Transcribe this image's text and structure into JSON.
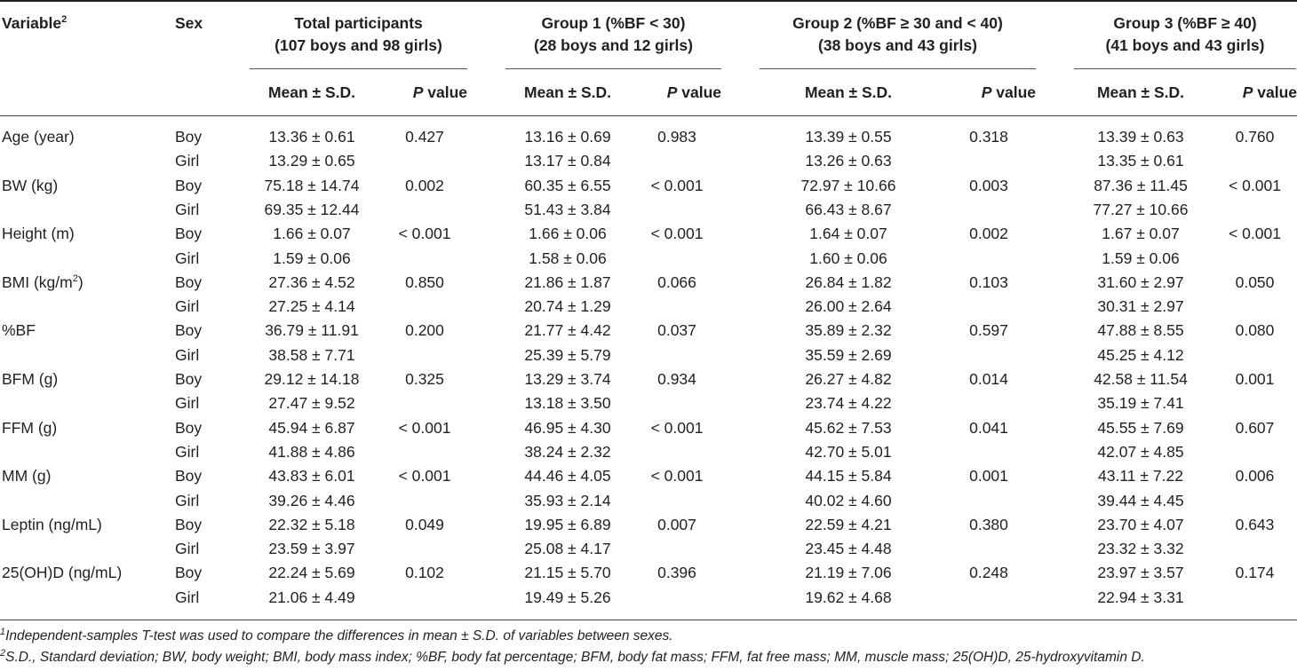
{
  "header": {
    "variable": "Variable",
    "variable_sup": "2",
    "sex": "Sex",
    "groups": [
      {
        "line1": "Total participants",
        "line2": "(107 boys and 98 girls)"
      },
      {
        "line1": "Group 1 (%BF < 30)",
        "line2": "(28 boys and 12 girls)"
      },
      {
        "line1": "Group 2 (%BF ≥ 30 and < 40)",
        "line2": "(38 boys and 43 girls)"
      },
      {
        "line1": "Group 3 (%BF ≥ 40)",
        "line2": "(41 boys and 43 girls)"
      }
    ],
    "mean_label": "Mean ± S.D.",
    "p_label_italic": "P",
    "p_label_rest": " value"
  },
  "rows": [
    {
      "variable": "Age (year)",
      "sup": "",
      "sex_boy": "Boy",
      "sex_girl": "Girl",
      "vals": [
        [
          "13.36 ± 0.61",
          "13.29 ± 0.65",
          "0.427"
        ],
        [
          "13.16 ± 0.69",
          "13.17 ± 0.84",
          "0.983"
        ],
        [
          "13.39 ± 0.55",
          "13.26 ± 0.63",
          "0.318"
        ],
        [
          "13.39 ± 0.63",
          "13.35 ± 0.61",
          "0.760"
        ]
      ]
    },
    {
      "variable": "BW (kg)",
      "sup": "",
      "sex_boy": "Boy",
      "sex_girl": "Girl",
      "vals": [
        [
          "75.18 ± 14.74",
          "69.35 ± 12.44",
          "0.002"
        ],
        [
          "60.35 ± 6.55",
          "51.43 ± 3.84",
          "< 0.001"
        ],
        [
          "72.97 ± 10.66",
          "66.43 ± 8.67",
          "0.003"
        ],
        [
          "87.36 ± 11.45",
          "77.27 ± 10.66",
          "< 0.001"
        ]
      ]
    },
    {
      "variable": "Height (m)",
      "sup": "",
      "sex_boy": "Boy",
      "sex_girl": "Girl",
      "vals": [
        [
          "1.66 ± 0.07",
          "1.59 ± 0.06",
          "< 0.001"
        ],
        [
          "1.66 ± 0.06",
          "1.58 ± 0.06",
          "< 0.001"
        ],
        [
          "1.64 ± 0.07",
          "1.60 ± 0.06",
          "0.002"
        ],
        [
          "1.67 ± 0.07",
          "1.59 ± 0.06",
          "< 0.001"
        ]
      ]
    },
    {
      "variable": "BMI (kg/m",
      "sup": "2",
      "suffix": ")",
      "sex_boy": "Boy",
      "sex_girl": "Girl",
      "vals": [
        [
          "27.36 ± 4.52",
          "27.25 ± 4.14",
          "0.850"
        ],
        [
          "21.86 ± 1.87",
          "20.74 ± 1.29",
          "0.066"
        ],
        [
          "26.84 ± 1.82",
          "26.00 ± 2.64",
          "0.103"
        ],
        [
          "31.60 ± 2.97",
          "30.31 ± 2.97",
          "0.050"
        ]
      ]
    },
    {
      "variable": "%BF",
      "sup": "",
      "sex_boy": "Boy",
      "sex_girl": "Girl",
      "vals": [
        [
          "36.79 ± 11.91",
          "38.58 ± 7.71",
          "0.200"
        ],
        [
          "21.77 ± 4.42",
          "25.39 ± 5.79",
          "0.037"
        ],
        [
          "35.89 ± 2.32",
          "35.59 ± 2.69",
          "0.597"
        ],
        [
          "47.88 ± 8.55",
          "45.25 ± 4.12",
          "0.080"
        ]
      ]
    },
    {
      "variable": "BFM (g)",
      "sup": "",
      "sex_boy": "Boy",
      "sex_girl": "Girl",
      "vals": [
        [
          "29.12 ± 14.18",
          "27.47 ± 9.52",
          "0.325"
        ],
        [
          "13.29 ± 3.74",
          "13.18 ± 3.50",
          "0.934"
        ],
        [
          "26.27 ± 4.82",
          "23.74 ± 4.22",
          "0.014"
        ],
        [
          "42.58 ± 11.54",
          "35.19 ± 7.41",
          "0.001"
        ]
      ]
    },
    {
      "variable": "FFM (g)",
      "sup": "",
      "sex_boy": "Boy",
      "sex_girl": "Girl",
      "vals": [
        [
          "45.94 ± 6.87",
          "41.88 ± 4.86",
          "< 0.001"
        ],
        [
          "46.95 ± 4.30",
          "38.24 ± 2.32",
          "< 0.001"
        ],
        [
          "45.62 ± 7.53",
          "42.70 ± 5.01",
          "0.041"
        ],
        [
          "45.55 ± 7.69",
          "42.07 ± 4.85",
          "0.607"
        ]
      ]
    },
    {
      "variable": "MM (g)",
      "sup": "",
      "sex_boy": "Boy",
      "sex_girl": "Girl",
      "vals": [
        [
          "43.83 ± 6.01",
          "39.26 ± 4.46",
          "< 0.001"
        ],
        [
          "44.46 ± 4.05",
          "35.93 ± 2.14",
          "< 0.001"
        ],
        [
          "44.15 ± 5.84",
          "40.02 ± 4.60",
          "0.001"
        ],
        [
          "43.11 ± 7.22",
          "39.44 ± 4.45",
          "0.006"
        ]
      ]
    },
    {
      "variable": "Leptin (ng/mL)",
      "sup": "",
      "sex_boy": "Boy",
      "sex_girl": "Girl",
      "vals": [
        [
          "22.32 ± 5.18",
          "23.59 ± 3.97",
          "0.049"
        ],
        [
          "19.95 ± 6.89",
          "25.08 ± 4.17",
          "0.007"
        ],
        [
          "22.59 ± 4.21",
          "23.45 ± 4.48",
          "0.380"
        ],
        [
          "23.70 ± 4.07",
          "23.32 ± 3.32",
          "0.643"
        ]
      ]
    },
    {
      "variable": "25(OH)D (ng/mL)",
      "sup": "",
      "sex_boy": "Boy",
      "sex_girl": "Girl",
      "vals": [
        [
          "22.24 ± 5.69",
          "21.06 ± 4.49",
          "0.102"
        ],
        [
          "21.15 ± 5.70",
          "19.49 ± 5.26",
          "0.396"
        ],
        [
          "21.19 ± 7.06",
          "19.62 ± 4.68",
          "0.248"
        ],
        [
          "23.97 ± 3.57",
          "22.94 ± 3.31",
          "0.174"
        ]
      ]
    }
  ],
  "footnotes": [
    {
      "sup": "1",
      "text": "Independent-samples T-test was used to compare the differences in mean ± S.D. of variables between sexes."
    },
    {
      "sup": "2",
      "text": "S.D., Standard deviation; BW, body weight; BMI, body mass index; %BF, body fat percentage; BFM, body fat mass; FFM, fat free mass; MM, muscle mass; 25(OH)D, 25-hydroxyvitamin D."
    }
  ]
}
